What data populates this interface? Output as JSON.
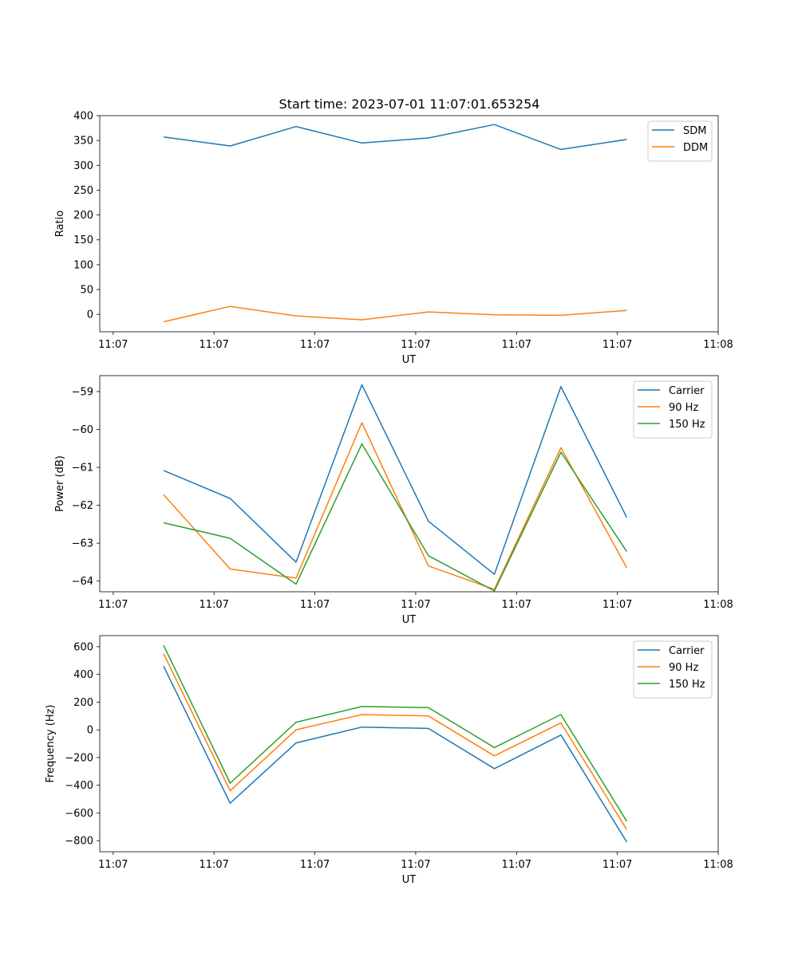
{
  "figure_title": "Start time: 2023-07-01 11:07:01.653254",
  "chart_data": [
    {
      "type": "line",
      "title": "Start time: 2023-07-01 11:07:01.653254",
      "xlabel": "UT",
      "ylabel": "Ratio",
      "xlim": [
        -0.2,
        9.0
      ],
      "ylim": [
        -35,
        400
      ],
      "x_ticks": [
        0,
        1.5,
        3,
        4.5,
        6,
        7.5,
        9
      ],
      "x_tick_labels": [
        "11:07",
        "11:07",
        "11:07",
        "11:07",
        "11:07",
        "11:07",
        "11:08"
      ],
      "y_ticks": [
        0,
        50,
        100,
        150,
        200,
        250,
        300,
        350,
        400
      ],
      "y_tick_labels": [
        "0",
        "50",
        "100",
        "150",
        "200",
        "250",
        "300",
        "350",
        "400"
      ],
      "x": [
        0.75,
        1.74,
        2.72,
        3.7,
        4.69,
        5.67,
        6.66,
        7.64
      ],
      "series": [
        {
          "name": "SDM",
          "color": "#1f77b4",
          "values": [
            357,
            339,
            378,
            345,
            355,
            382,
            332,
            352
          ]
        },
        {
          "name": "DDM",
          "color": "#ff7f0e",
          "values": [
            -15,
            16,
            -3,
            -11,
            5,
            -1,
            -2,
            8
          ]
        }
      ],
      "legend": "top-right"
    },
    {
      "type": "line",
      "title": "",
      "xlabel": "UT",
      "ylabel": "Power (dB)",
      "xlim": [
        -0.2,
        9.0
      ],
      "ylim": [
        -64.28,
        -58.58
      ],
      "x_ticks": [
        0,
        1.5,
        3,
        4.5,
        6,
        7.5,
        9
      ],
      "x_tick_labels": [
        "11:07",
        "11:07",
        "11:07",
        "11:07",
        "11:07",
        "11:07",
        "11:08"
      ],
      "y_ticks": [
        -64,
        -63,
        -62,
        -61,
        -60,
        -59
      ],
      "y_tick_labels": [
        "−64",
        "−63",
        "−62",
        "−61",
        "−60",
        "−59"
      ],
      "x": [
        0.75,
        1.74,
        2.72,
        3.7,
        4.69,
        5.67,
        6.66,
        7.64
      ],
      "series": [
        {
          "name": "Carrier",
          "color": "#1f77b4",
          "values": [
            -61.08,
            -61.82,
            -63.5,
            -58.82,
            -62.42,
            -63.82,
            -58.87,
            -62.32
          ]
        },
        {
          "name": "90 Hz",
          "color": "#ff7f0e",
          "values": [
            -61.72,
            -63.68,
            -63.92,
            -59.82,
            -63.6,
            -64.22,
            -60.48,
            -63.65
          ]
        },
        {
          "name": "150 Hz",
          "color": "#2ca02c",
          "values": [
            -62.46,
            -62.87,
            -64.08,
            -60.38,
            -63.33,
            -64.26,
            -60.6,
            -63.22
          ]
        }
      ],
      "legend": "top-right"
    },
    {
      "type": "line",
      "title": "",
      "xlabel": "UT",
      "ylabel": "Frequency (Hz)",
      "xlim": [
        -0.2,
        9.0
      ],
      "ylim": [
        -880,
        680
      ],
      "x_ticks": [
        0,
        1.5,
        3,
        4.5,
        6,
        7.5,
        9
      ],
      "x_tick_labels": [
        "11:07",
        "11:07",
        "11:07",
        "11:07",
        "11:07",
        "11:07",
        "11:08"
      ],
      "y_ticks": [
        -800,
        -600,
        -400,
        -200,
        0,
        200,
        400,
        600
      ],
      "y_tick_labels": [
        "−800",
        "−600",
        "−400",
        "−200",
        "0",
        "200",
        "400",
        "600"
      ],
      "x": [
        0.75,
        1.74,
        2.72,
        3.7,
        4.69,
        5.67,
        6.66,
        7.64
      ],
      "series": [
        {
          "name": "Carrier",
          "color": "#1f77b4",
          "values": [
            460,
            -530,
            -95,
            20,
            10,
            -280,
            -38,
            -810
          ]
        },
        {
          "name": "90 Hz",
          "color": "#ff7f0e",
          "values": [
            550,
            -440,
            0,
            110,
            100,
            -188,
            50,
            -720
          ]
        },
        {
          "name": "150 Hz",
          "color": "#2ca02c",
          "values": [
            610,
            -385,
            55,
            168,
            160,
            -128,
            110,
            -660
          ]
        }
      ],
      "legend": "top-right"
    }
  ]
}
